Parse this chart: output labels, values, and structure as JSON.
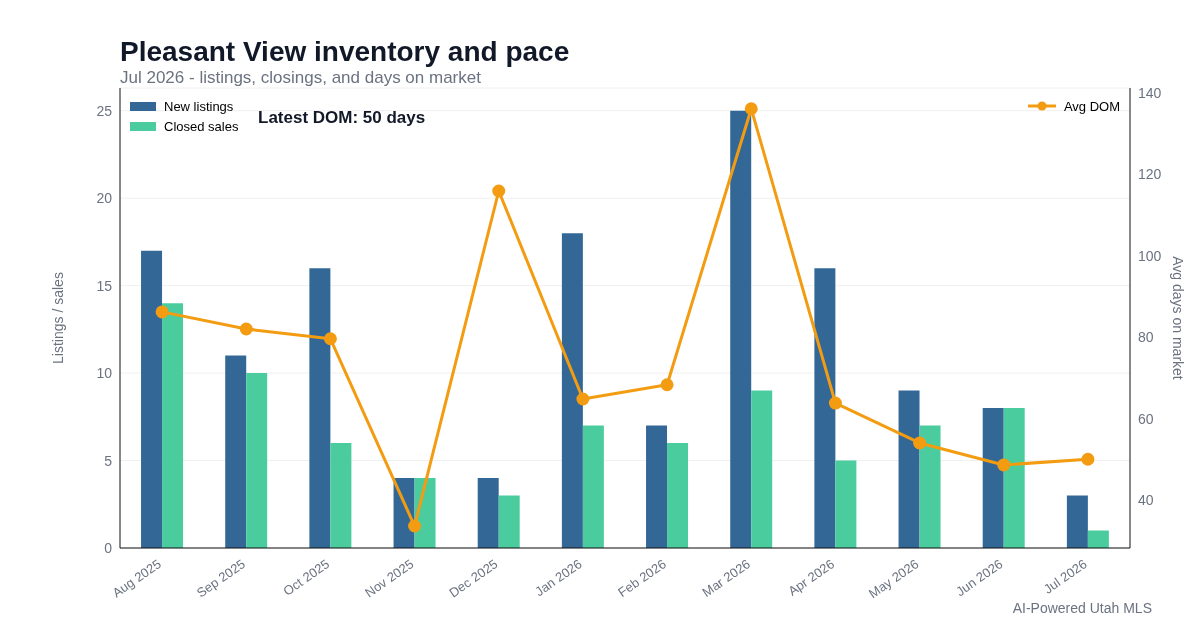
{
  "chart_data": {
    "type": "bar",
    "title": "Pleasant View inventory and pace",
    "subtitle": "Jul 2026 - listings, closings, and days on market",
    "ylabel": "Listings / sales",
    "y2label": "Avg days on market",
    "categories": [
      "Aug 2025",
      "Sep 2025",
      "Oct 2025",
      "Nov 2025",
      "Dec 2025",
      "Jan 2026",
      "Feb 2026",
      "Mar 2026",
      "Apr 2026",
      "May 2026",
      "Jun 2026",
      "Jul 2026"
    ],
    "series": [
      {
        "name": "New listings",
        "color": "#336896",
        "values": [
          17,
          11,
          16,
          4,
          4,
          18,
          7,
          25,
          16,
          9,
          8,
          3
        ]
      },
      {
        "name": "Closed sales",
        "color": "#4bcc9e",
        "values": [
          14,
          10,
          6,
          4,
          3,
          7,
          6,
          9,
          5,
          7,
          8,
          1
        ]
      },
      {
        "name": "Avg DOM",
        "type": "line",
        "axis": "y2",
        "color": "#f39c12",
        "marker": "circle",
        "values": [
          86.2,
          82,
          79.6,
          33.6,
          115.9,
          64.8,
          68.3,
          136.1,
          63.8,
          54,
          48.6,
          50
        ]
      }
    ],
    "ylim": [
      0,
      26.3
    ],
    "yticks": [
      0,
      5,
      10,
      15,
      20,
      25
    ],
    "y2lim": [
      28.2,
      141.2
    ],
    "y2ticks": [
      40,
      60,
      80,
      100,
      120,
      140
    ],
    "grid": "y",
    "legend": "top",
    "annotations": [
      "Latest DOM: 50 days",
      "AI-Powered Utah MLS"
    ]
  }
}
